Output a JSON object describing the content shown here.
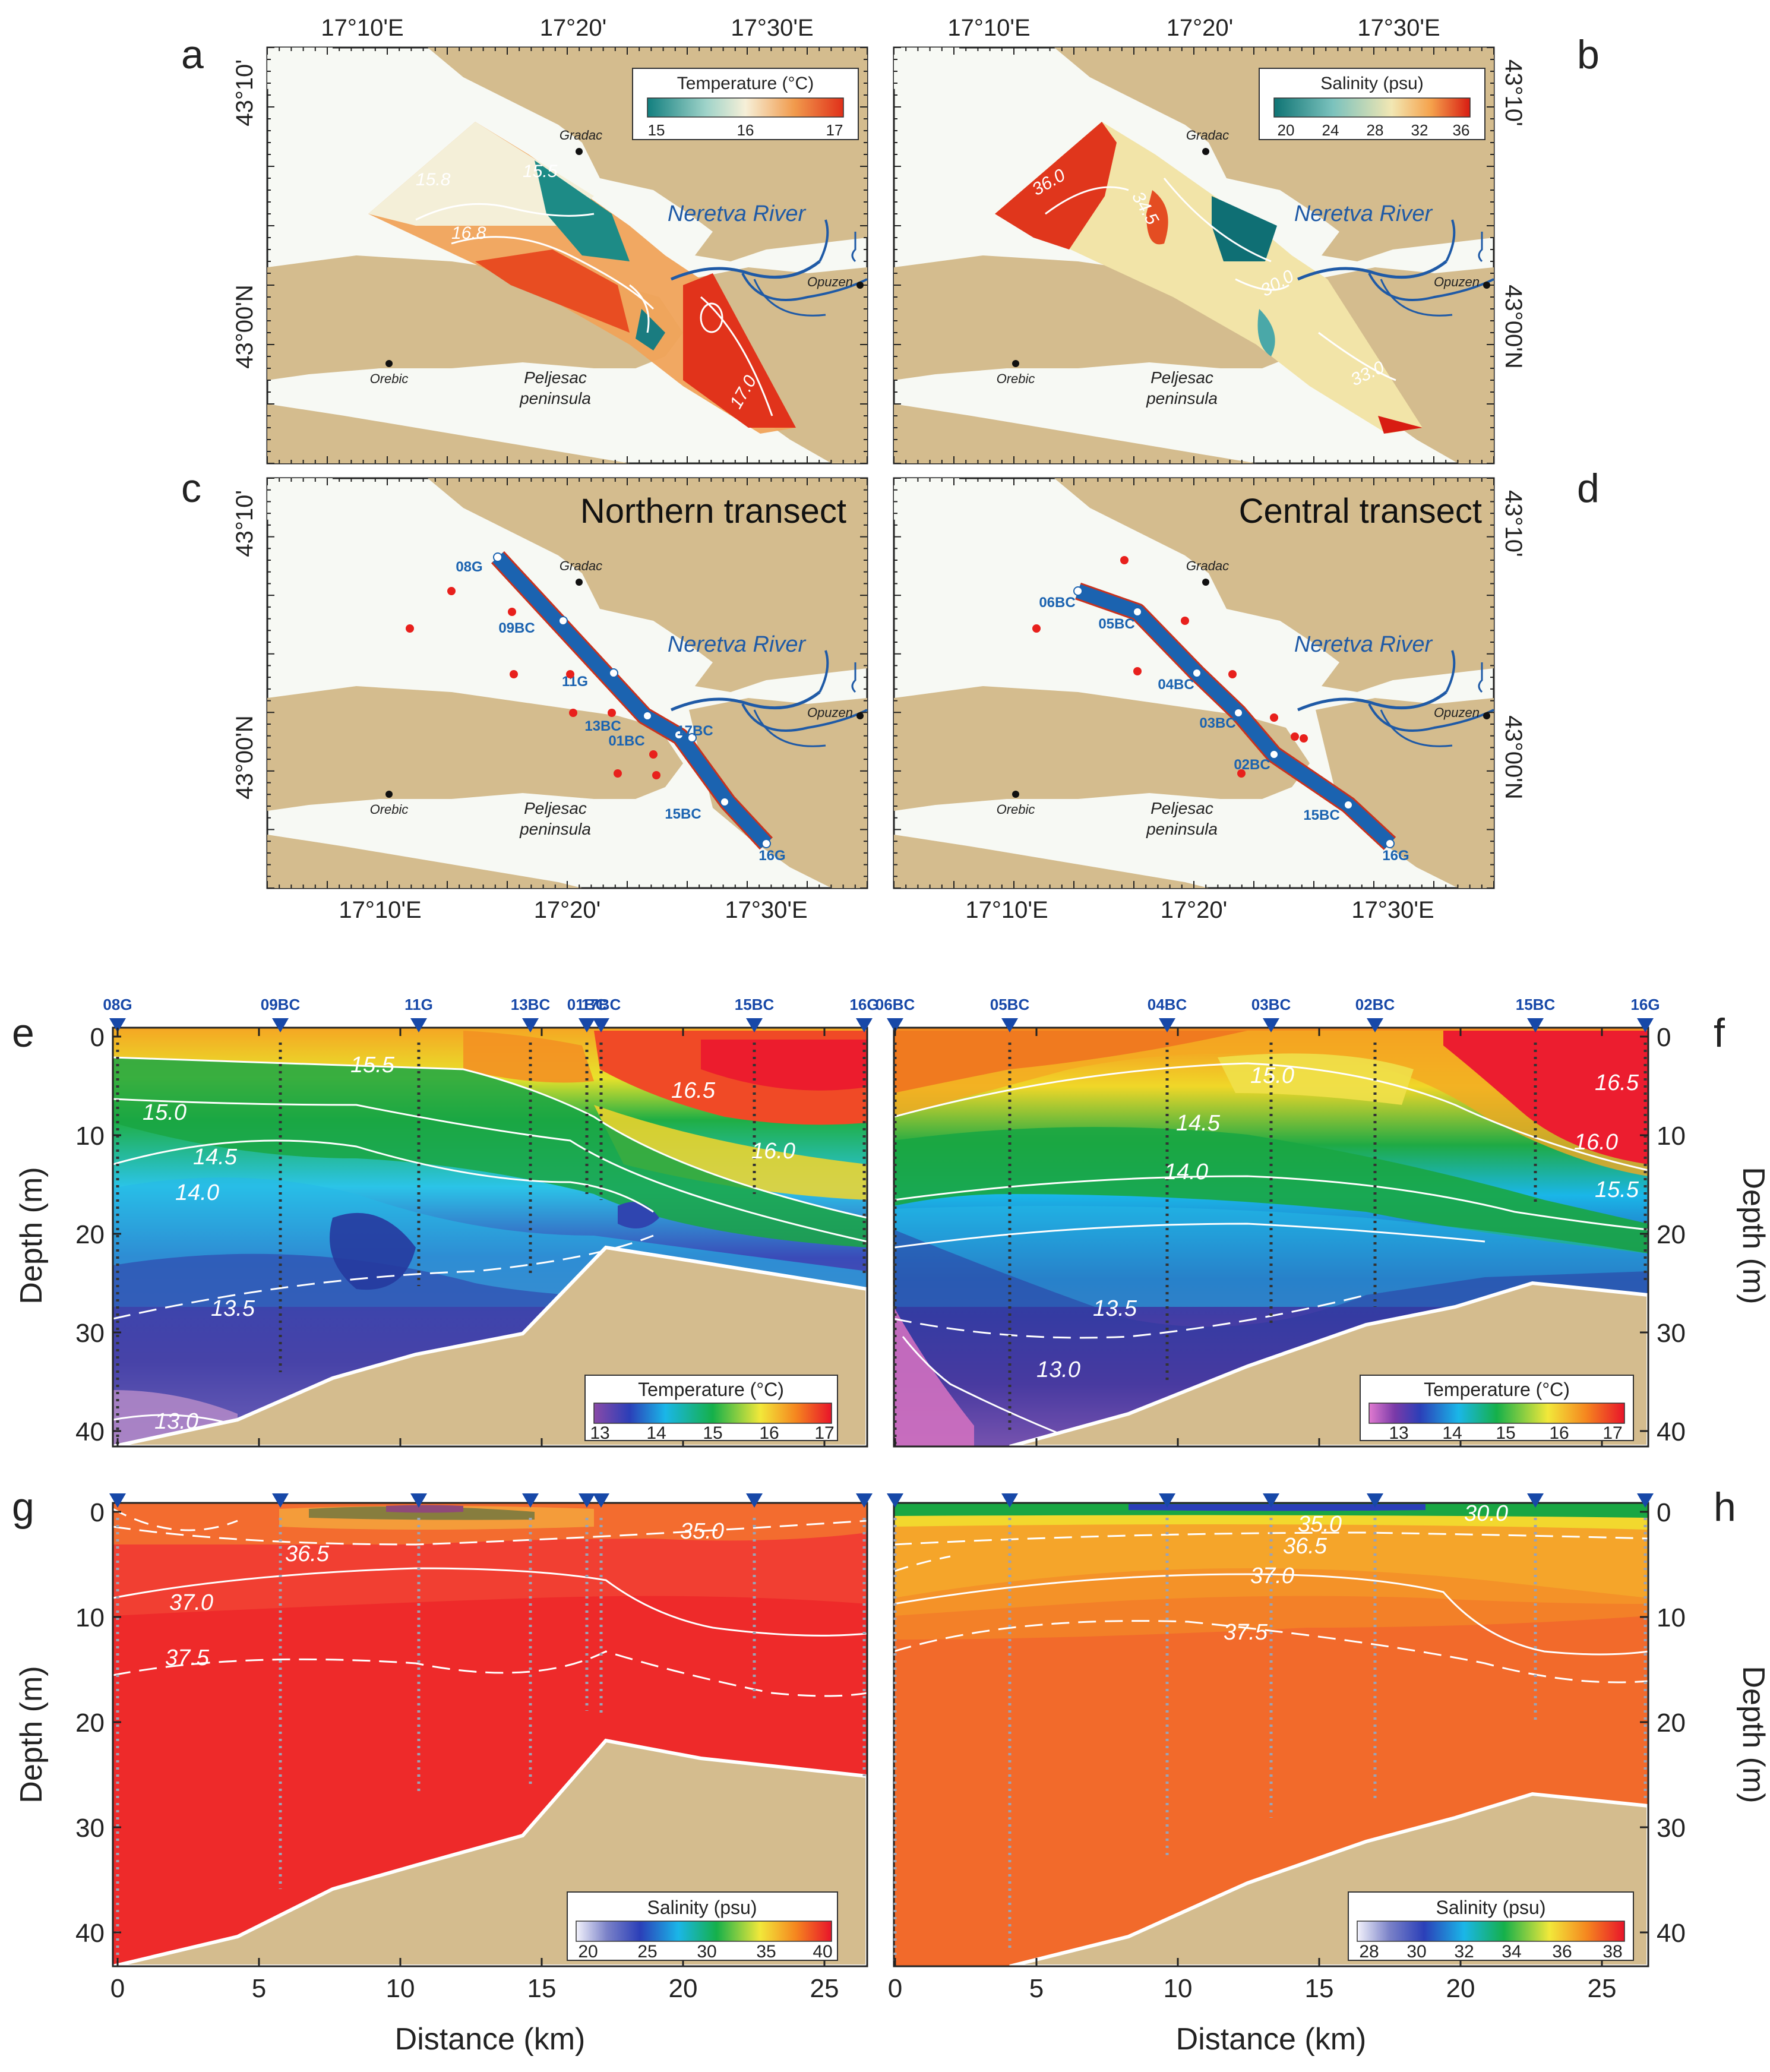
{
  "colors": {
    "land": "#d4bc8e",
    "sea": "#f7f9f4",
    "river": "#1f5aa6",
    "transect": "#1b63b0",
    "station": "#e8201c",
    "marker": "#1748a8"
  },
  "panel_letters": [
    "a",
    "b",
    "c",
    "d",
    "e",
    "f",
    "g",
    "h"
  ],
  "maps": {
    "top_lon_labels": [
      "17°10'E",
      "17°20'",
      "17°30'E"
    ],
    "bottom_lon_labels": [
      "17°10'E",
      "17°20'",
      "17°30'E"
    ],
    "lat_labels": [
      "43°10'",
      "43°00'N"
    ],
    "places": {
      "gradac": "Gradac",
      "opuzen": "Opuzen",
      "orebic": "Orebic",
      "neretva": "Neretva River",
      "peljesac": "Peljesac peninsula"
    },
    "a": {
      "legend_title": "Temperature (°C)",
      "legend_ticks": [
        "15",
        "16",
        "17"
      ],
      "contour_labels": [
        "15.8",
        "15.5",
        "16.8",
        "17.0"
      ]
    },
    "b": {
      "legend_title": "Salinity (psu)",
      "legend_ticks": [
        "20",
        "24",
        "28",
        "32",
        "36"
      ],
      "contour_labels": [
        "36.0",
        "34.5",
        "30.0",
        "33.0"
      ]
    },
    "c": {
      "title": "Northern transect",
      "stations": [
        "08G",
        "09BC",
        "11G",
        "13BC",
        "01BC",
        "17BC",
        "15BC",
        "16G"
      ]
    },
    "d": {
      "title": "Central transect",
      "stations": [
        "06BC",
        "05BC",
        "04BC",
        "03BC",
        "02BC",
        "15BC",
        "16G"
      ]
    }
  },
  "sections": {
    "depth_label": "Depth (m)",
    "distance_label": "Distance (km)",
    "depth_ticks": [
      "0",
      "10",
      "20",
      "30",
      "40"
    ],
    "distance_ticks": [
      "0",
      "5",
      "10",
      "15",
      "20",
      "25"
    ],
    "north_stations": [
      "08G",
      "09BC",
      "11G",
      "13BC",
      "01BC",
      "17BC",
      "15BC",
      "16G"
    ],
    "central_stations": [
      "06BC",
      "05BC",
      "04BC",
      "03BC",
      "02BC",
      "15BC",
      "16G"
    ],
    "e": {
      "legend_title": "Temperature (°C)",
      "legend_ticks": [
        "13",
        "14",
        "15",
        "16",
        "17"
      ],
      "contour_labels": [
        "15.5",
        "15.0",
        "16.5",
        "14.5",
        "16.0",
        "14.0",
        "13.5",
        "13.0"
      ]
    },
    "f": {
      "legend_title": "Temperature (°C)",
      "legend_ticks": [
        "13",
        "14",
        "15",
        "16",
        "17"
      ],
      "contour_labels": [
        "15.0",
        "16.5",
        "14.5",
        "16.0",
        "14.0",
        "15.5",
        "13.5",
        "13.0"
      ]
    },
    "g": {
      "legend_title": "Salinity (psu)",
      "legend_ticks": [
        "20",
        "25",
        "30",
        "35",
        "40"
      ],
      "contour_labels": [
        "35.0",
        "36.5",
        "37.0",
        "37.5"
      ]
    },
    "h": {
      "legend_title": "Salinity (psu)",
      "legend_ticks": [
        "28",
        "30",
        "32",
        "34",
        "36",
        "38"
      ],
      "contour_labels": [
        "30.0",
        "35.0",
        "36.5",
        "37.0",
        "37.5"
      ]
    }
  }
}
